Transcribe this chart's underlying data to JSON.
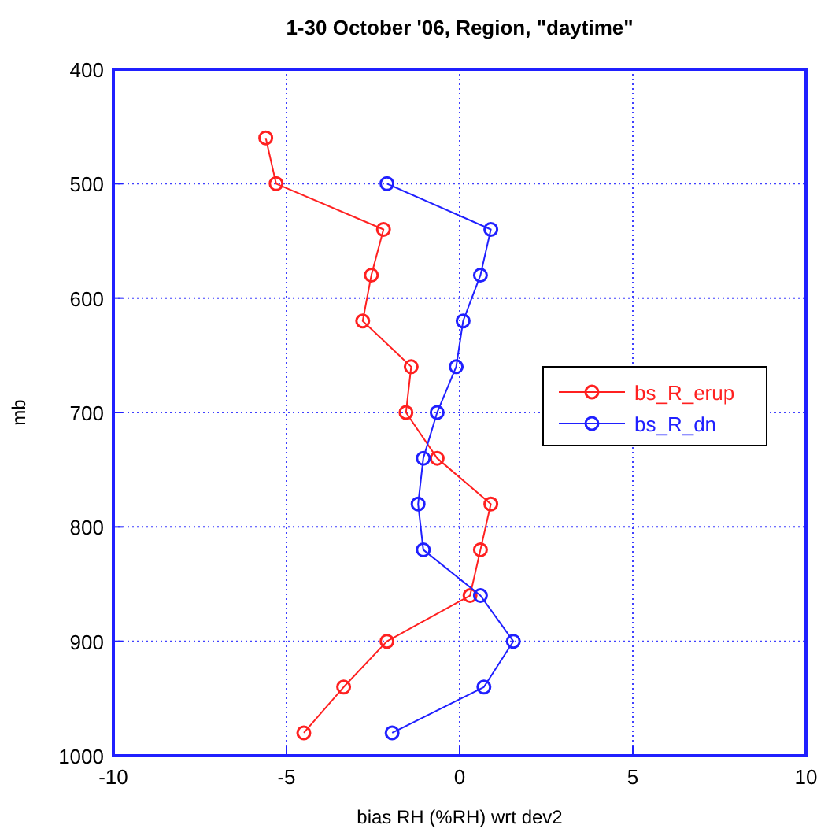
{
  "chart_data": {
    "type": "line",
    "title": "1-30 October '06, Region, \"daytime\"",
    "xlabel": "bias RH (%RH) wrt dev2",
    "ylabel": "mb",
    "xlim": [
      -10,
      10
    ],
    "xticks": [
      -10,
      -5,
      0,
      5,
      10
    ],
    "ylim": [
      1000,
      400
    ],
    "yticks": [
      400,
      500,
      600,
      700,
      800,
      900,
      1000
    ],
    "grid": true,
    "legend": "right",
    "marker": "circle",
    "line_style": "solid",
    "series": [
      {
        "name": "bs_R_erup",
        "color": "#ff2020",
        "x": [
          -5.6,
          -5.3,
          -2.2,
          -2.55,
          -2.8,
          -1.4,
          -1.55,
          -0.65,
          0.9,
          0.6,
          0.3,
          -2.1,
          -3.35,
          -4.5
        ],
        "values": [
          460,
          500,
          540,
          580,
          620,
          660,
          700,
          740,
          780,
          820,
          860,
          900,
          940,
          980
        ]
      },
      {
        "name": "bs_R_dn",
        "color": "#2020ff",
        "x": [
          -2.1,
          0.9,
          0.6,
          0.1,
          -0.1,
          -0.65,
          -1.05,
          -1.2,
          -1.05,
          0.6,
          1.55,
          0.7,
          -1.95
        ],
        "values": [
          500,
          540,
          580,
          620,
          660,
          700,
          740,
          780,
          820,
          860,
          900,
          940,
          980
        ]
      }
    ]
  }
}
